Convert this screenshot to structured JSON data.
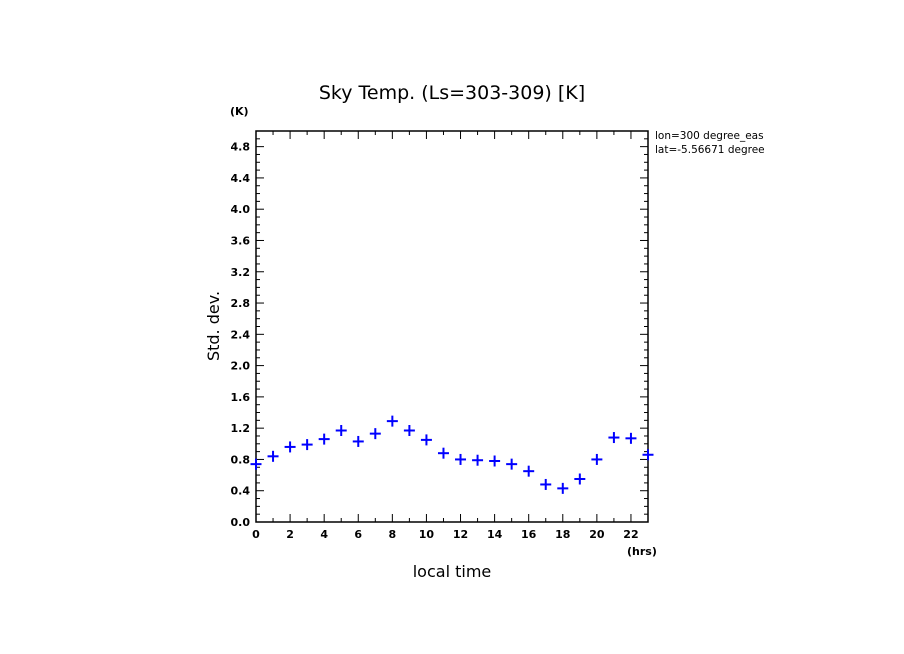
{
  "chart_data": {
    "type": "scatter",
    "title": "Sky Temp. (Ls=303-309) [K]",
    "xlabel": "local time",
    "ylabel": "Std. dev.",
    "x_unit": "(hrs)",
    "y_unit": "(K)",
    "xlim": [
      0,
      23
    ],
    "ylim": [
      0,
      5.0
    ],
    "x_ticks": [
      0,
      2,
      4,
      6,
      8,
      10,
      12,
      14,
      16,
      18,
      20,
      22
    ],
    "y_ticks": [
      "0.0",
      "0.4",
      "0.8",
      "1.2",
      "1.6",
      "2.0",
      "2.4",
      "2.8",
      "3.2",
      "3.6",
      "4.0",
      "4.4",
      "4.8"
    ],
    "marker": "plus",
    "marker_color": "#0000ff",
    "grid": false,
    "series": [
      {
        "x": [
          0,
          1,
          2,
          3,
          4,
          5,
          6,
          7,
          8,
          9,
          10,
          11,
          12,
          13,
          14,
          15,
          16,
          17,
          18,
          19,
          20,
          21,
          22,
          23
        ],
        "y": [
          0.74,
          0.84,
          0.96,
          0.99,
          1.06,
          1.17,
          1.03,
          1.13,
          1.29,
          1.17,
          1.05,
          0.88,
          0.8,
          0.79,
          0.78,
          0.74,
          0.65,
          0.48,
          0.43,
          0.55,
          0.8,
          1.08,
          1.07,
          0.86
        ]
      }
    ],
    "annotations": [
      "lon=300 degree_eas",
      "lat=-5.56671 degree"
    ]
  }
}
